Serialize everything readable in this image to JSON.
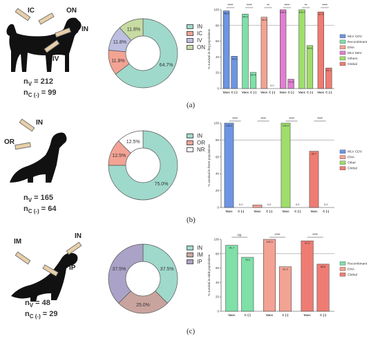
{
  "panels": [
    {
      "letter": "(a)",
      "animal": "dog",
      "routes": [
        "IC",
        "ON",
        "IN",
        "IV"
      ],
      "nv_label": "n",
      "nv_sub": "V",
      "nv_value": "= 212",
      "nc_label": "n",
      "nc_sub": "C (-)",
      "nc_value": "= 99",
      "donut": {
        "legend": [
          "IN",
          "IC",
          "IV",
          "ON"
        ],
        "colors": [
          "#9fd9cb",
          "#f2a394",
          "#bcbfe0",
          "#c7dba2"
        ],
        "values": [
          64.7,
          11.8,
          11.8,
          11.8
        ],
        "labels": [
          "64.7%",
          "11.8%",
          "11.8%",
          "11.8%"
        ]
      }
    },
    {
      "letter": "(b)",
      "animal": "ferret",
      "routes": [
        "OR",
        "IN"
      ],
      "nv_label": "n",
      "nv_sub": "V",
      "nv_value": "= 165",
      "nc_label": "n",
      "nc_sub": "C (-)",
      "nc_value": "= 64",
      "donut": {
        "legend": [
          "IN",
          "OR",
          "NR"
        ],
        "colors": [
          "#9fd9cb",
          "#f2a394",
          "#ffffff"
        ],
        "values": [
          75.0,
          12.5,
          12.5
        ],
        "labels": [
          "75.0%",
          "12.5%",
          "12.5%"
        ]
      }
    },
    {
      "letter": "(c)",
      "animal": "mink",
      "routes": [
        "IM",
        "IN",
        "IP"
      ],
      "nv_label": "n",
      "nv_sub": "V",
      "nv_value": "= 48",
      "nc_label": "n",
      "nc_sub": "C (-)",
      "nc_value": "= 29",
      "donut": {
        "legend": [
          "IN",
          "IM",
          "IP"
        ],
        "colors": [
          "#9fd9cb",
          "#c9a49e",
          "#aba2c7"
        ],
        "values": [
          37.5,
          25.0,
          37.5
        ],
        "labels": [
          "37.5%",
          "25.0%",
          "37.5%"
        ]
      }
    }
  ],
  "chart_data": [
    {
      "type": "bar",
      "ylabel": "% survival in dog populations",
      "ylim": [
        0,
        100
      ],
      "yticks": [
        "0",
        "20",
        "40",
        "60",
        "80",
        "100"
      ],
      "reference_line": 80,
      "categories": [
        "Vacc",
        "C (-)",
        "Vacc",
        "C (-)",
        "Vacc",
        "C (-)",
        "Vacc",
        "C (-)",
        "Vacc",
        "C (-)",
        "Vacc",
        "C (-)"
      ],
      "values": [
        98.5,
        41.0,
        94.5,
        20.4,
        90.5,
        0.0,
        100.0,
        11.8,
        100.0,
        54.5,
        97.2,
        26.1
      ],
      "value_labels": [
        "98.5",
        "41.0",
        "94.5",
        "20.4",
        "90.5",
        "0.0",
        "100.0",
        "11.8",
        "100.0",
        "54.5",
        "97.2",
        "26.1"
      ],
      "bar_colors": [
        "#6d95e3",
        "#6d95e3",
        "#7fe0a8",
        "#7fe0a8",
        "#f2a394",
        "#f2a394",
        "#e07fcf",
        "#e07fcf",
        "#9fde6b",
        "#9fde6b",
        "#ef7c73",
        "#ef7c73"
      ],
      "significance": [
        "****",
        "****",
        "**",
        "****",
        "**",
        "****"
      ],
      "legend": [
        "MLV CDV",
        "Recombinant",
        "DNA",
        "MLV MeV",
        "Others",
        "Global"
      ],
      "legend_colors": [
        "#6d95e3",
        "#7fe0a8",
        "#f2a394",
        "#e07fcf",
        "#9fde6b",
        "#ef7c73"
      ]
    },
    {
      "type": "bar",
      "ylabel": "% survival in ferret populations",
      "ylim": [
        0,
        100
      ],
      "yticks": [
        "0",
        "20",
        "40",
        "60",
        "80",
        "100"
      ],
      "reference_line": 80,
      "categories": [
        "Vacc",
        "C (-)",
        "Vacc",
        "C (-)",
        "Vacc",
        "C (-)",
        "Vacc",
        "C (-)"
      ],
      "values": [
        100.0,
        0.0,
        3.0,
        0.0,
        100.0,
        0.0,
        66.7,
        0.0
      ],
      "value_labels": [
        "100.0",
        "0.0",
        "",
        "0.0",
        "100.0",
        "0.0",
        "66.7",
        "0.0"
      ],
      "bar_colors": [
        "#6d95e3",
        "#6d95e3",
        "#f2a394",
        "#f2a394",
        "#9fde6b",
        "#9fde6b",
        "#ef7c73",
        "#ef7c73"
      ],
      "significance": [
        "****",
        "****",
        "****",
        "****"
      ],
      "legend": [
        "MLV CDV",
        "DNA",
        "Other",
        "Global"
      ],
      "legend_colors": [
        "#6d95e3",
        "#f2a394",
        "#9fde6b",
        "#ef7c73"
      ]
    },
    {
      "type": "bar",
      "ylabel": "% survival in mink populations",
      "ylim": [
        0,
        100
      ],
      "yticks": [
        "0",
        "20",
        "40",
        "60",
        "80",
        "100"
      ],
      "reference_line": 80,
      "categories": [
        "Vacc",
        "C (-)",
        "Vacc",
        "C (-)",
        "Vacc",
        "C (-)"
      ],
      "values": [
        91.7,
        75.0,
        100.0,
        61.9,
        97.9,
        65.5
      ],
      "value_labels": [
        "91.7",
        "75.0",
        "100.0",
        "61.9",
        "97.9",
        "65.5"
      ],
      "bar_colors": [
        "#7fe0a8",
        "#7fe0a8",
        "#f2a394",
        "#f2a394",
        "#ef7c73",
        "#ef7c73"
      ],
      "significance": [
        "ns",
        "****",
        "****"
      ],
      "legend": [
        "Recombinant",
        "DNA",
        "Global"
      ],
      "legend_colors": [
        "#7fe0a8",
        "#f2a394",
        "#ef7c73"
      ]
    }
  ]
}
